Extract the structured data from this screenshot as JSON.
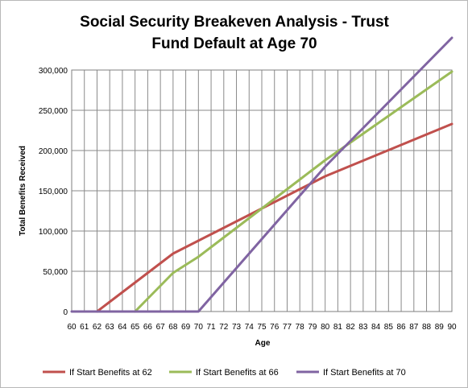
{
  "chart_data": {
    "type": "line",
    "title_lines": [
      "Social Security Breakeven Analysis - Trust",
      "Fund Default at Age 70"
    ],
    "xlabel": "Age",
    "ylabel": "Total Benefits Received",
    "x": [
      60,
      61,
      62,
      63,
      64,
      65,
      66,
      67,
      68,
      69,
      70,
      71,
      72,
      73,
      74,
      75,
      76,
      77,
      78,
      79,
      80,
      81,
      82,
      83,
      84,
      85,
      86,
      87,
      88,
      89,
      90
    ],
    "x_tick_labels": [
      "60",
      "61",
      "62",
      "63",
      "64",
      "65",
      "66",
      "67",
      "68",
      "69",
      "70",
      "71",
      "72",
      "73",
      "74",
      "75",
      "76",
      "77",
      "78",
      "79",
      "80",
      "81",
      "82",
      "83",
      "84",
      "85",
      "86",
      "87",
      "88",
      "89",
      "90"
    ],
    "y_ticks": [
      0,
      50000,
      100000,
      150000,
      200000,
      250000,
      300000
    ],
    "y_tick_labels": [
      "0",
      "50,000",
      "100,000",
      "150,000",
      "200,000",
      "250,000",
      "300,000"
    ],
    "ylim": [
      0,
      300000
    ],
    "grid": "vertical and horizontal",
    "legend_position": "bottom",
    "series": [
      {
        "name": "If Start Benefits at 62",
        "color": "#c0504d",
        "values": [
          null,
          null,
          0,
          12000,
          24000,
          36000,
          48000,
          60000,
          72000,
          80000,
          88000,
          96000,
          104000,
          112000,
          120000,
          128000,
          136000,
          144000,
          152000,
          160000,
          168000,
          174500,
          181000,
          187500,
          194000,
          200500,
          207000,
          213500,
          220000,
          226500,
          233000
        ]
      },
      {
        "name": "If Start Benefits at 66",
        "color": "#9bbb59",
        "values": [
          null,
          null,
          null,
          null,
          null,
          0,
          16000,
          32000,
          48000,
          58000,
          68000,
          80000,
          92000,
          104000,
          116000,
          128000,
          140000,
          152000,
          164000,
          176000,
          188000,
          199000,
          210000,
          221000,
          232000,
          243000,
          254000,
          265000,
          276000,
          287000,
          298000
        ]
      },
      {
        "name": "If Start Benefits at 70",
        "color": "#8064a2",
        "values": [
          0,
          0,
          0,
          0,
          0,
          0,
          0,
          0,
          0,
          0,
          0,
          18000,
          36000,
          54000,
          72000,
          90000,
          108000,
          126000,
          144000,
          162000,
          180000,
          196000,
          212000,
          228000,
          244000,
          260000,
          276000,
          292000,
          308000,
          324000,
          340000
        ]
      }
    ]
  }
}
